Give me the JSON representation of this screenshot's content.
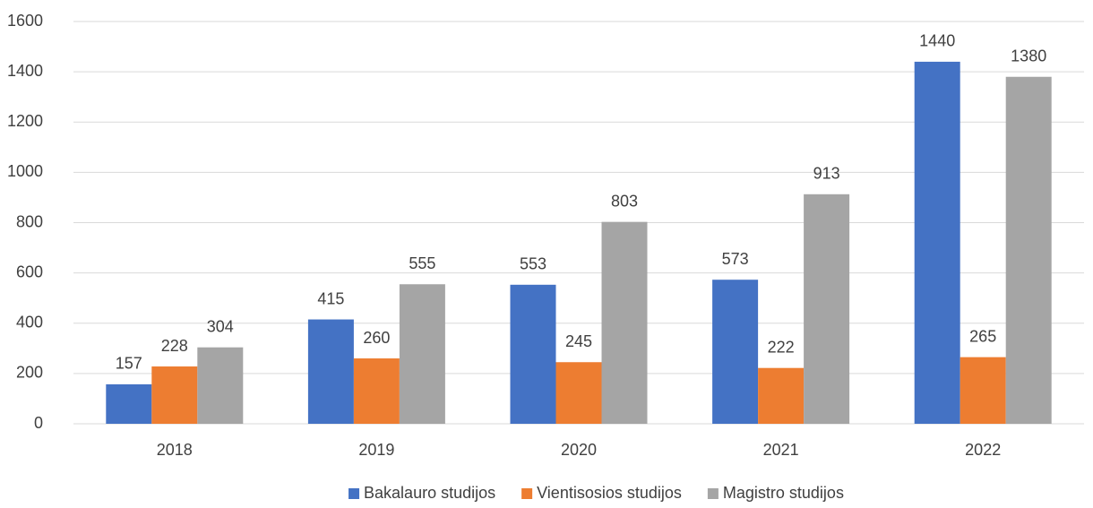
{
  "chart_data": {
    "type": "bar",
    "categories": [
      "2018",
      "2019",
      "2020",
      "2021",
      "2022"
    ],
    "series": [
      {
        "name": "Bakalauro studijos",
        "color": "#4472c4",
        "values": [
          157,
          415,
          553,
          573,
          1440
        ]
      },
      {
        "name": "Vientisosios studijos",
        "color": "#ed7d31",
        "values": [
          228,
          260,
          245,
          222,
          265
        ]
      },
      {
        "name": "Magistro studijos",
        "color": "#a5a5a5",
        "values": [
          304,
          555,
          803,
          913,
          1380
        ]
      }
    ],
    "ylim": [
      0,
      1600
    ],
    "yticks": [
      0,
      200,
      400,
      600,
      800,
      1000,
      1200,
      1400,
      1600
    ],
    "grid": true,
    "legend": "bottom"
  }
}
